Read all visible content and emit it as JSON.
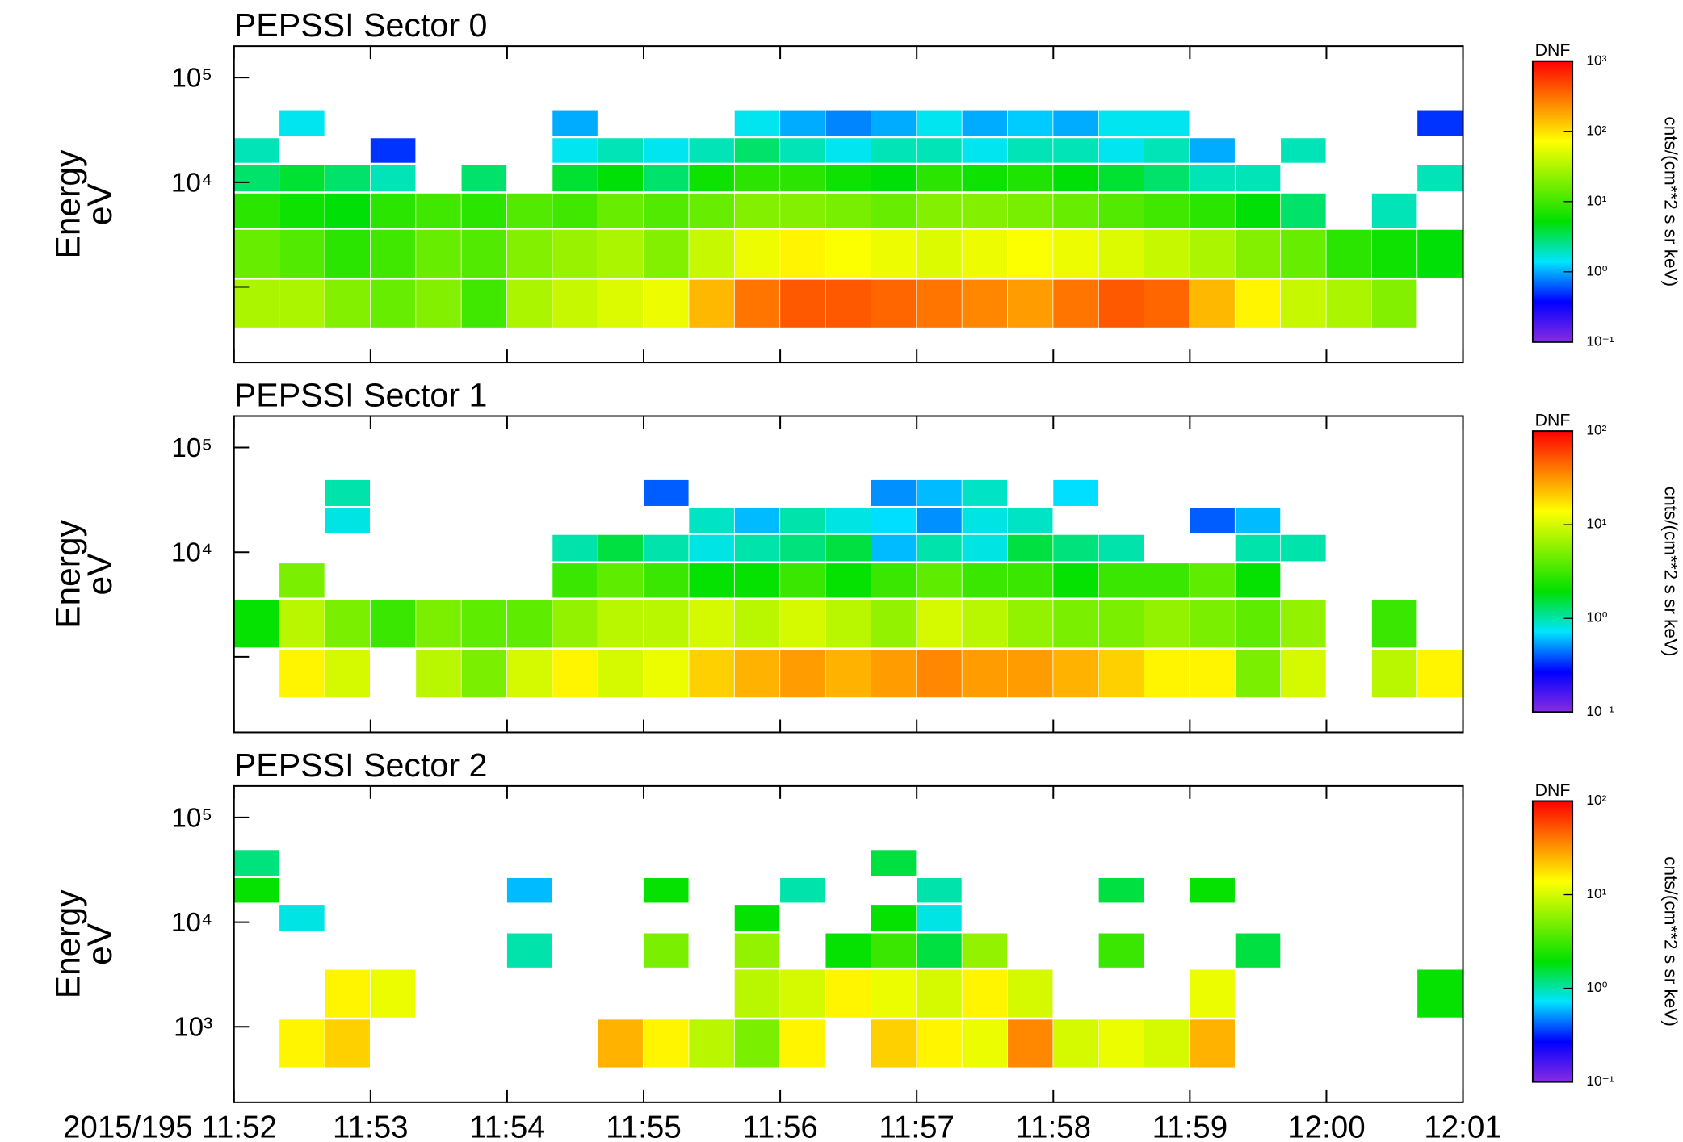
{
  "chart_data": [
    {
      "type": "spectrogram",
      "title": "PEPSSI Sector 0",
      "ylabel": [
        "Energy",
        "eV"
      ],
      "log_y": true,
      "xlim": [
        42720,
        43260
      ],
      "xticks": [
        42720,
        42780,
        42840,
        42900,
        42960,
        43020,
        43080,
        43140,
        43200,
        43260
      ],
      "ylim": [
        190,
        200000
      ],
      "yticks": [
        {
          "value": 1000,
          "label": null
        },
        {
          "value": 10000,
          "label": "10⁴"
        },
        {
          "value": 100000,
          "label": "10⁵"
        }
      ],
      "x_bins": [
        42720,
        42740,
        42760,
        42780,
        42800,
        42820,
        42840,
        42860,
        42880,
        42900,
        42920,
        42940,
        42960,
        42980,
        43000,
        43020,
        43040,
        43060,
        43080,
        43100,
        43120,
        43140,
        43160,
        43180,
        43200,
        43220,
        43240,
        43260
      ],
      "y_bins": [
        400,
        1200,
        3600,
        8000,
        15000,
        27000,
        50000
      ],
      "values": [
        [
          30,
          30,
          20,
          15,
          20,
          10,
          30,
          40,
          50,
          60,
          150,
          300,
          400,
          400,
          350,
          300,
          250,
          200,
          300,
          400,
          350,
          150,
          80,
          40,
          30,
          20,
          null
        ],
        [
          15,
          12,
          8,
          10,
          15,
          12,
          20,
          25,
          30,
          20,
          40,
          60,
          80,
          70,
          60,
          50,
          60,
          70,
          60,
          50,
          40,
          30,
          20,
          15,
          8,
          6,
          5
        ],
        [
          8,
          6,
          5,
          8,
          10,
          8,
          12,
          10,
          15,
          12,
          15,
          20,
          20,
          18,
          15,
          20,
          20,
          18,
          15,
          12,
          10,
          8,
          5,
          3,
          null,
          2,
          null
        ],
        [
          3,
          4,
          3,
          2,
          null,
          3,
          null,
          4,
          5,
          3,
          6,
          8,
          8,
          6,
          5,
          8,
          6,
          7,
          5,
          4,
          3,
          2,
          2,
          null,
          null,
          null,
          2
        ],
        [
          2,
          null,
          null,
          0.5,
          null,
          null,
          null,
          1.5,
          2,
          1.5,
          2,
          3,
          2,
          1.5,
          2,
          2,
          1.5,
          2,
          2,
          1.5,
          2,
          1,
          null,
          2,
          null,
          null,
          null
        ],
        [
          null,
          1.5,
          null,
          null,
          null,
          null,
          null,
          1,
          null,
          null,
          null,
          1.5,
          1,
          0.8,
          1,
          1.5,
          1,
          1.2,
          1,
          1.5,
          1.5,
          null,
          null,
          null,
          null,
          null,
          0.5
        ]
      ],
      "colorbar_title": "DNF",
      "colorbar_label": "cnts/(cm**2 s sr keV)",
      "clim": [
        0.1,
        1000
      ],
      "cticks": [
        {
          "value": 0.1,
          "label": "10⁻¹"
        },
        {
          "value": 1,
          "label": "10⁰"
        },
        {
          "value": 10,
          "label": "10¹"
        },
        {
          "value": 100,
          "label": "10²"
        },
        {
          "value": 1000,
          "label": "10³"
        }
      ],
      "colormap": [
        "#8a2be2",
        "#0000ff",
        "#00e5ff",
        "#00e000",
        "#80f000",
        "#ffff00",
        "#ff8000",
        "#ff0000"
      ]
    },
    {
      "type": "spectrogram",
      "title": "PEPSSI Sector 1",
      "ylabel": [
        "Energy",
        "eV"
      ],
      "log_y": true,
      "xlim": [
        42720,
        43260
      ],
      "xticks": [
        42720,
        42780,
        42840,
        42900,
        42960,
        43020,
        43080,
        43140,
        43200,
        43260
      ],
      "ylim": [
        190,
        200000
      ],
      "yticks": [
        {
          "value": 1000,
          "label": null
        },
        {
          "value": 10000,
          "label": "10⁴"
        },
        {
          "value": 100000,
          "label": "10⁵"
        }
      ],
      "x_bins": [
        42720,
        42740,
        42760,
        42780,
        42800,
        42820,
        42840,
        42860,
        42880,
        42900,
        42920,
        42940,
        42960,
        42980,
        43000,
        43020,
        43040,
        43060,
        43080,
        43100,
        43120,
        43140,
        43160,
        43180,
        43200,
        43220,
        43240,
        43260
      ],
      "y_bins": [
        400,
        1200,
        3600,
        8000,
        15000,
        27000,
        50000
      ],
      "values": [
        [
          null,
          15,
          10,
          null,
          8,
          5,
          10,
          15,
          10,
          12,
          20,
          25,
          30,
          25,
          30,
          35,
          30,
          30,
          25,
          20,
          15,
          15,
          5,
          10,
          null,
          8,
          15
        ],
        [
          2,
          8,
          5,
          3,
          5,
          4,
          4,
          6,
          8,
          8,
          10,
          8,
          10,
          8,
          6,
          10,
          8,
          6,
          5,
          5,
          6,
          5,
          4,
          6,
          null,
          3,
          null
        ],
        [
          null,
          5,
          null,
          null,
          null,
          null,
          null,
          3,
          4,
          3,
          2,
          2,
          3,
          2,
          3,
          4,
          3,
          3,
          2,
          3,
          3,
          4,
          2,
          null,
          null,
          null,
          null
        ],
        [
          null,
          null,
          null,
          null,
          null,
          null,
          null,
          1,
          1.5,
          1,
          0.8,
          1,
          1.2,
          1.5,
          0.6,
          1,
          0.8,
          1.5,
          1.2,
          1,
          null,
          null,
          1,
          1,
          null,
          null,
          null
        ],
        [
          null,
          null,
          0.8,
          null,
          null,
          null,
          null,
          null,
          null,
          null,
          0.9,
          0.6,
          1,
          0.8,
          0.7,
          0.5,
          0.8,
          0.9,
          null,
          null,
          null,
          0.4,
          0.6,
          null,
          null,
          null,
          null
        ],
        [
          null,
          null,
          1,
          null,
          null,
          null,
          null,
          null,
          null,
          0.4,
          null,
          null,
          null,
          null,
          0.5,
          0.6,
          0.9,
          null,
          0.7,
          null,
          null,
          null,
          null,
          null,
          null,
          null,
          null
        ]
      ],
      "colorbar_title": "DNF",
      "colorbar_label": "cnts/(cm**2 s sr keV)",
      "clim": [
        0.1,
        100
      ],
      "cticks": [
        {
          "value": 0.1,
          "label": "10⁻¹"
        },
        {
          "value": 1,
          "label": "10⁰"
        },
        {
          "value": 10,
          "label": "10¹"
        },
        {
          "value": 100,
          "label": "10²"
        }
      ],
      "colormap": [
        "#8a2be2",
        "#0000ff",
        "#00e5ff",
        "#00e000",
        "#80f000",
        "#ffff00",
        "#ff8000",
        "#ff0000"
      ]
    },
    {
      "type": "spectrogram",
      "title": "PEPSSI Sector 2",
      "ylabel": [
        "Energy",
        "eV"
      ],
      "log_y": true,
      "xlim": [
        42720,
        43260
      ],
      "xticks": [
        {
          "value": 42720,
          "label": "2015/195 11:52"
        },
        {
          "value": 42780,
          "label": "11:53"
        },
        {
          "value": 42840,
          "label": "11:54"
        },
        {
          "value": 42900,
          "label": "11:55"
        },
        {
          "value": 42960,
          "label": "11:56"
        },
        {
          "value": 43020,
          "label": "11:57"
        },
        {
          "value": 43080,
          "label": "11:58"
        },
        {
          "value": 43140,
          "label": "11:59"
        },
        {
          "value": 43200,
          "label": "12:00"
        },
        {
          "value": 43260,
          "label": "12:01"
        }
      ],
      "ylim": [
        190,
        200000
      ],
      "yticks": [
        {
          "value": 1000,
          "label": "10³"
        },
        {
          "value": 10000,
          "label": "10⁴"
        },
        {
          "value": 100000,
          "label": "10⁵"
        }
      ],
      "x_bins": [
        42720,
        42740,
        42760,
        42780,
        42800,
        42820,
        42840,
        42860,
        42880,
        42900,
        42920,
        42940,
        42960,
        42980,
        43000,
        43020,
        43040,
        43060,
        43080,
        43100,
        43120,
        43140,
        43160,
        43180,
        43200,
        43220,
        43240,
        43260
      ],
      "y_bins": [
        400,
        1200,
        3600,
        8000,
        15000,
        27000,
        50000
      ],
      "values": [
        [
          null,
          15,
          20,
          null,
          null,
          null,
          null,
          null,
          25,
          15,
          8,
          5,
          15,
          null,
          20,
          15,
          12,
          35,
          10,
          12,
          10,
          25,
          null,
          null,
          null,
          null,
          null
        ],
        [
          null,
          null,
          15,
          12,
          null,
          null,
          null,
          null,
          null,
          null,
          null,
          8,
          10,
          15,
          12,
          10,
          15,
          10,
          null,
          null,
          null,
          12,
          null,
          null,
          null,
          null,
          2
        ],
        [
          null,
          null,
          null,
          null,
          null,
          null,
          1,
          null,
          null,
          5,
          null,
          6,
          null,
          2,
          3,
          1.5,
          6,
          null,
          null,
          3,
          null,
          null,
          1.5,
          null,
          null,
          null,
          null
        ],
        [
          null,
          0.8,
          null,
          null,
          null,
          null,
          null,
          null,
          null,
          null,
          null,
          2,
          null,
          null,
          2,
          0.8,
          null,
          null,
          null,
          null,
          null,
          null,
          null,
          null,
          null,
          null,
          null
        ],
        [
          2,
          null,
          null,
          null,
          null,
          null,
          0.6,
          null,
          null,
          2,
          null,
          null,
          1,
          null,
          null,
          1,
          null,
          null,
          null,
          1.5,
          null,
          2,
          null,
          null,
          null,
          null,
          null
        ],
        [
          1.2,
          null,
          null,
          null,
          null,
          null,
          null,
          null,
          null,
          null,
          null,
          null,
          null,
          null,
          1.5,
          null,
          null,
          null,
          null,
          null,
          null,
          null,
          null,
          null,
          null,
          null,
          null
        ]
      ],
      "colorbar_title": "DNF",
      "colorbar_label": "cnts/(cm**2 s sr keV)",
      "clim": [
        0.1,
        100
      ],
      "cticks": [
        {
          "value": 0.1,
          "label": "10⁻¹"
        },
        {
          "value": 1,
          "label": "10⁰"
        },
        {
          "value": 10,
          "label": "10¹"
        },
        {
          "value": 100,
          "label": "10²"
        }
      ],
      "colormap": [
        "#8a2be2",
        "#0000ff",
        "#00e5ff",
        "#00e000",
        "#80f000",
        "#ffff00",
        "#ff8000",
        "#ff0000"
      ]
    }
  ]
}
